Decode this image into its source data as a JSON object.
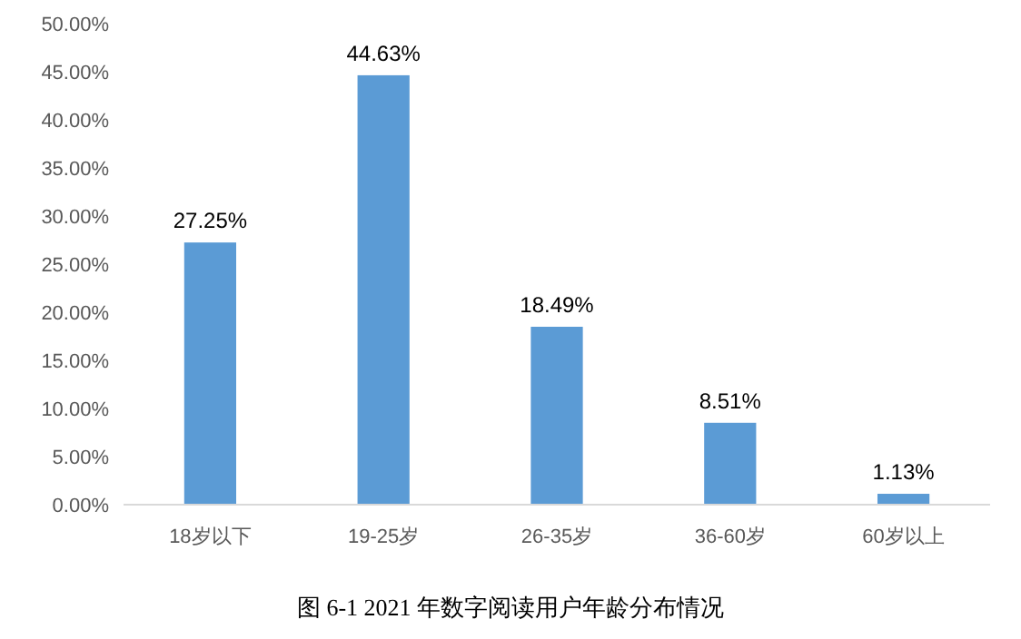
{
  "chart_data": {
    "type": "bar",
    "title": "图 6-1 2021 年数字阅读用户年龄分布情况",
    "categories": [
      "18岁以下",
      "19-25岁",
      "26-35岁",
      "36-60岁",
      "60岁以上"
    ],
    "values": [
      27.25,
      44.63,
      18.49,
      8.51,
      1.13
    ],
    "value_labels": [
      "27.25%",
      "44.63%",
      "18.49%",
      "8.51%",
      "1.13%"
    ],
    "color": "#5b9bd5",
    "ylim": [
      0,
      50
    ],
    "yticks": [
      {
        "value": 0,
        "label": "0.00%"
      },
      {
        "value": 5,
        "label": "5.00%"
      },
      {
        "value": 10,
        "label": "10.00%"
      },
      {
        "value": 15,
        "label": "15.00%"
      },
      {
        "value": 20,
        "label": "20.00%"
      },
      {
        "value": 25,
        "label": "25.00%"
      },
      {
        "value": 30,
        "label": "30.00%"
      },
      {
        "value": 35,
        "label": "35.00%"
      },
      {
        "value": 40,
        "label": "40.00%"
      },
      {
        "value": 45,
        "label": "45.00%"
      },
      {
        "value": 50,
        "label": "50.00%"
      }
    ],
    "grid": false
  }
}
